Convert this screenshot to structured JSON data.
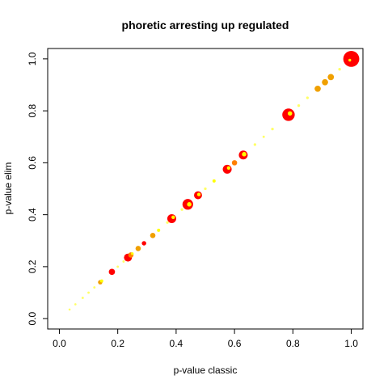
{
  "chart_data": {
    "type": "scatter",
    "title": "phoretic arresting up regulated",
    "xlabel": "p-value classic",
    "ylabel": "p-value elim",
    "xlim": [
      -0.04,
      1.04
    ],
    "ylim": [
      -0.04,
      1.04
    ],
    "xticks": [
      0.0,
      0.2,
      0.4,
      0.6,
      0.8,
      1.0
    ],
    "yticks": [
      0.0,
      0.2,
      0.4,
      0.6,
      0.8,
      1.0
    ],
    "xtick_labels": [
      "0.0",
      "0.2",
      "0.4",
      "0.6",
      "0.8",
      "1.0"
    ],
    "ytick_labels": [
      "0.0",
      "0.2",
      "0.4",
      "0.6",
      "0.8",
      "1.0"
    ],
    "grid": false,
    "colors": {
      "red": "#ff0000",
      "orange": "#ff8000",
      "yellow": "#ffff00",
      "lightyellow": "#ffff66",
      "darkorange": "#f0a000"
    },
    "points": [
      {
        "x": 0.035,
        "y": 0.035,
        "size": 1.2,
        "color": "lightyellow"
      },
      {
        "x": 0.055,
        "y": 0.055,
        "size": 1.2,
        "color": "lightyellow"
      },
      {
        "x": 0.08,
        "y": 0.08,
        "size": 1.3,
        "color": "lightyellow"
      },
      {
        "x": 0.1,
        "y": 0.1,
        "size": 1.3,
        "color": "lightyellow"
      },
      {
        "x": 0.12,
        "y": 0.12,
        "size": 1.3,
        "color": "lightyellow"
      },
      {
        "x": 0.14,
        "y": 0.14,
        "size": 2.5,
        "color": "darkorange"
      },
      {
        "x": 0.145,
        "y": 0.145,
        "size": 1.8,
        "color": "yellow"
      },
      {
        "x": 0.18,
        "y": 0.18,
        "size": 3.5,
        "color": "red"
      },
      {
        "x": 0.2,
        "y": 0.2,
        "size": 1.3,
        "color": "lightyellow"
      },
      {
        "x": 0.22,
        "y": 0.22,
        "size": 1.3,
        "color": "lightyellow"
      },
      {
        "x": 0.235,
        "y": 0.235,
        "size": 4.5,
        "color": "red"
      },
      {
        "x": 0.245,
        "y": 0.245,
        "size": 3.0,
        "color": "orange"
      },
      {
        "x": 0.25,
        "y": 0.25,
        "size": 1.5,
        "color": "yellow"
      },
      {
        "x": 0.27,
        "y": 0.27,
        "size": 3.0,
        "color": "darkorange"
      },
      {
        "x": 0.29,
        "y": 0.29,
        "size": 2.5,
        "color": "red"
      },
      {
        "x": 0.32,
        "y": 0.32,
        "size": 3.0,
        "color": "darkorange"
      },
      {
        "x": 0.34,
        "y": 0.34,
        "size": 1.8,
        "color": "yellow"
      },
      {
        "x": 0.37,
        "y": 0.37,
        "size": 1.5,
        "color": "lightyellow"
      },
      {
        "x": 0.385,
        "y": 0.385,
        "size": 5.0,
        "color": "red"
      },
      {
        "x": 0.39,
        "y": 0.39,
        "size": 2.0,
        "color": "yellow"
      },
      {
        "x": 0.42,
        "y": 0.42,
        "size": 1.5,
        "color": "lightyellow"
      },
      {
        "x": 0.44,
        "y": 0.44,
        "size": 6.0,
        "color": "red"
      },
      {
        "x": 0.445,
        "y": 0.44,
        "size": 2.5,
        "color": "yellow"
      },
      {
        "x": 0.475,
        "y": 0.475,
        "size": 4.5,
        "color": "red"
      },
      {
        "x": 0.478,
        "y": 0.478,
        "size": 2.0,
        "color": "yellow"
      },
      {
        "x": 0.5,
        "y": 0.5,
        "size": 1.5,
        "color": "lightyellow"
      },
      {
        "x": 0.53,
        "y": 0.53,
        "size": 1.8,
        "color": "yellow"
      },
      {
        "x": 0.575,
        "y": 0.575,
        "size": 5.0,
        "color": "red"
      },
      {
        "x": 0.58,
        "y": 0.58,
        "size": 2.0,
        "color": "yellow"
      },
      {
        "x": 0.6,
        "y": 0.6,
        "size": 3.0,
        "color": "orange"
      },
      {
        "x": 0.63,
        "y": 0.63,
        "size": 5.0,
        "color": "red"
      },
      {
        "x": 0.633,
        "y": 0.633,
        "size": 2.5,
        "color": "yellow"
      },
      {
        "x": 0.67,
        "y": 0.67,
        "size": 1.5,
        "color": "lightyellow"
      },
      {
        "x": 0.7,
        "y": 0.7,
        "size": 1.3,
        "color": "lightyellow"
      },
      {
        "x": 0.73,
        "y": 0.73,
        "size": 1.5,
        "color": "lightyellow"
      },
      {
        "x": 0.785,
        "y": 0.785,
        "size": 7.0,
        "color": "red"
      },
      {
        "x": 0.79,
        "y": 0.79,
        "size": 2.5,
        "color": "yellow"
      },
      {
        "x": 0.82,
        "y": 0.82,
        "size": 1.5,
        "color": "lightyellow"
      },
      {
        "x": 0.85,
        "y": 0.85,
        "size": 1.5,
        "color": "lightyellow"
      },
      {
        "x": 0.885,
        "y": 0.885,
        "size": 3.5,
        "color": "darkorange"
      },
      {
        "x": 0.91,
        "y": 0.91,
        "size": 3.5,
        "color": "darkorange"
      },
      {
        "x": 0.93,
        "y": 0.93,
        "size": 3.5,
        "color": "darkorange"
      },
      {
        "x": 0.96,
        "y": 0.96,
        "size": 1.5,
        "color": "lightyellow"
      },
      {
        "x": 1.0,
        "y": 1.0,
        "size": 9.0,
        "color": "red"
      },
      {
        "x": 0.995,
        "y": 0.995,
        "size": 1.5,
        "color": "yellow"
      }
    ]
  }
}
